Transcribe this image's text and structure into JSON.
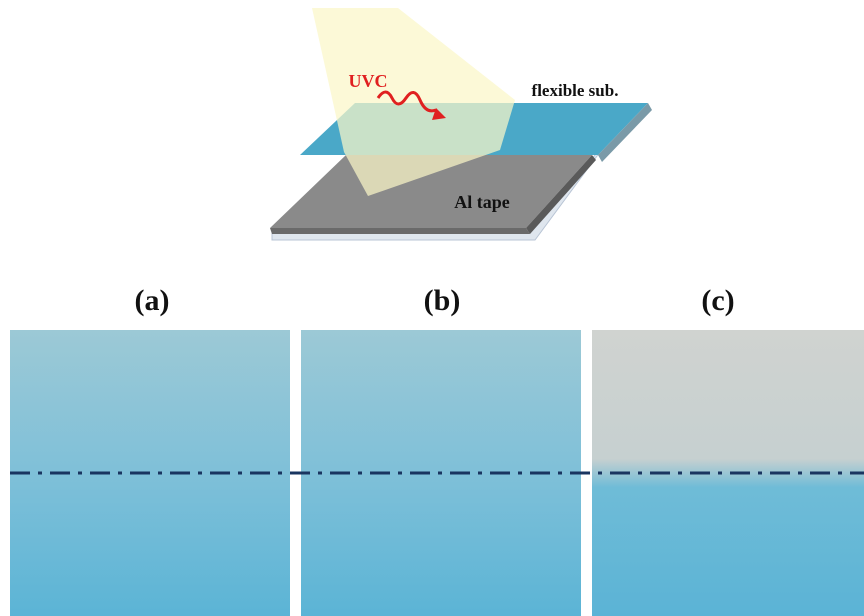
{
  "schematic": {
    "uv_label": "UVC",
    "substrate_label": "flexible sub.",
    "tape_label": "Al tape"
  },
  "panels": [
    {
      "label": "(a)"
    },
    {
      "label": "(b)"
    },
    {
      "label": "(c)"
    }
  ]
}
